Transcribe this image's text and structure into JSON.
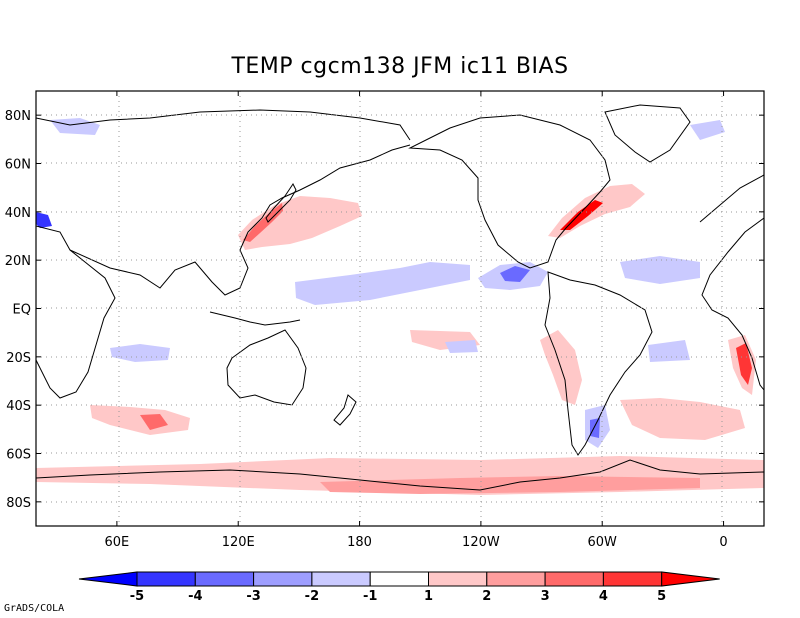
{
  "title": "TEMP cgcm138 JFM ic11 BIAS",
  "credit": "GrADS/COLA",
  "axes": {
    "lon_ticks": [
      {
        "label": "60E",
        "lon": 60
      },
      {
        "label": "120E",
        "lon": 120
      },
      {
        "label": "180",
        "lon": 180
      },
      {
        "label": "120W",
        "lon": 240
      },
      {
        "label": "60W",
        "lon": 300
      },
      {
        "label": "0",
        "lon": 360
      }
    ],
    "lat_ticks": [
      {
        "label": "80N",
        "lat": 80
      },
      {
        "label": "60N",
        "lat": 60
      },
      {
        "label": "40N",
        "lat": 40
      },
      {
        "label": "20N",
        "lat": 20
      },
      {
        "label": "EQ",
        "lat": 0
      },
      {
        "label": "20S",
        "lat": -20
      },
      {
        "label": "40S",
        "lat": -40
      },
      {
        "label": "60S",
        "lat": -60
      },
      {
        "label": "80S",
        "lat": -80
      }
    ],
    "lon_range": [
      20,
      380
    ],
    "lat_range": [
      -90,
      90
    ]
  },
  "colorbar": {
    "labels": [
      "-5",
      "-4",
      "-3",
      "-2",
      "-1",
      "1",
      "2",
      "3",
      "4",
      "5"
    ],
    "colors": [
      "#0000ff",
      "#3535ff",
      "#6a6aff",
      "#9e9eff",
      "#cacaff",
      "#ffffff",
      "#ffc8c8",
      "#ff9e9e",
      "#ff6a6a",
      "#ff3535",
      "#ff0000"
    ]
  }
}
